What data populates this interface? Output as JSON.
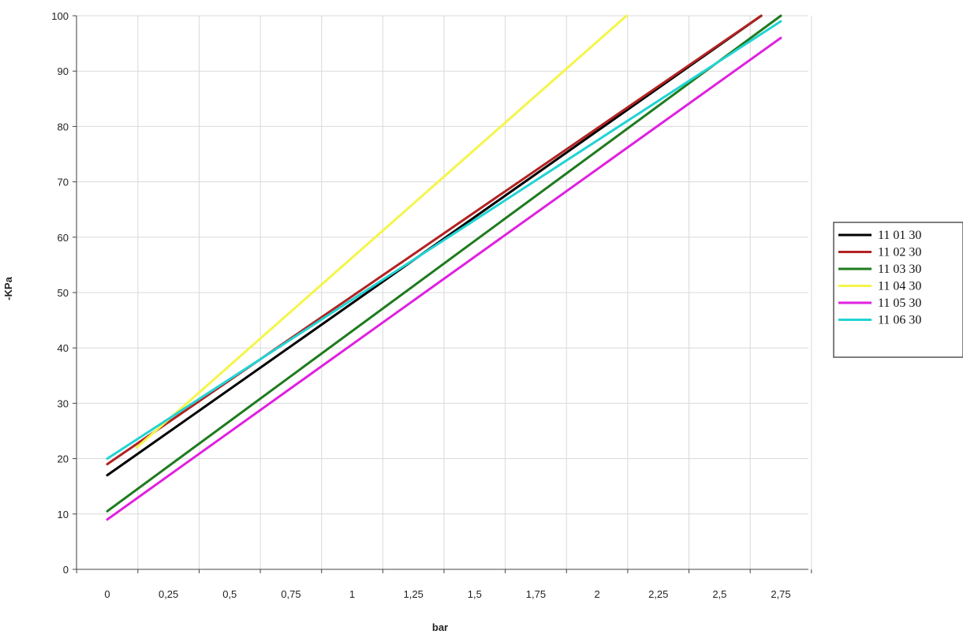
{
  "chart_data": {
    "type": "line",
    "xlabel": "bar",
    "ylabel": "-KPa",
    "x_ticks": [
      "0",
      "0,25",
      "0,5",
      "0,75",
      "1",
      "1,25",
      "1,5",
      "1,75",
      "2",
      "2,25",
      "2,5",
      "2,75"
    ],
    "y_ticks": [
      "0",
      "10",
      "20",
      "30",
      "40",
      "50",
      "60",
      "70",
      "80",
      "90",
      "100"
    ],
    "xlim": [
      0,
      2.75
    ],
    "ylim": [
      0,
      100
    ],
    "grid": true,
    "legend_position": "right",
    "series": [
      {
        "name": "11 01 30",
        "color": "#000000",
        "x": [
          0,
          2.67
        ],
        "y": [
          17,
          100
        ]
      },
      {
        "name": "11 02 30",
        "color": "#b22222",
        "x": [
          0,
          2.67
        ],
        "y": [
          19,
          100
        ]
      },
      {
        "name": "11 03 30",
        "color": "#1e7b1e",
        "x": [
          0,
          2.75
        ],
        "y": [
          10.5,
          100
        ]
      },
      {
        "name": "11 04 30",
        "color": "#f5f54a",
        "x": [
          0.12,
          2.12
        ],
        "y": [
          22,
          100
        ]
      },
      {
        "name": "11 05 30",
        "color": "#e020e0",
        "x": [
          0,
          2.75
        ],
        "y": [
          9,
          96
        ]
      },
      {
        "name": "11 06 30",
        "color": "#22d3d3",
        "x": [
          0,
          2.75
        ],
        "y": [
          20,
          99
        ]
      }
    ]
  }
}
